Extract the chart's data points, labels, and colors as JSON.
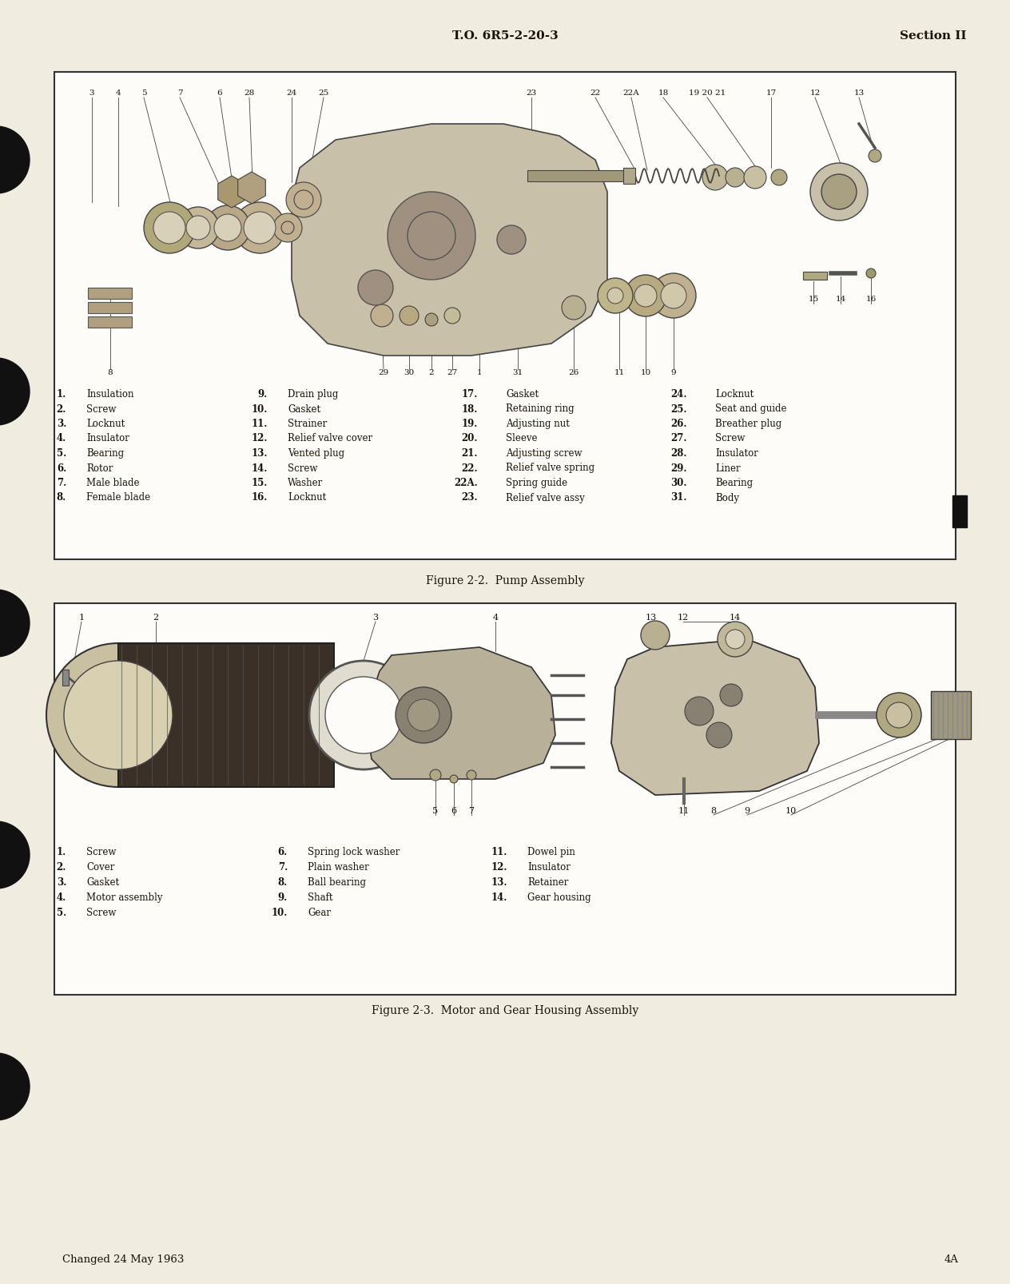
{
  "page_bg": "#f0ece0",
  "box_bg": "#fdfcf8",
  "text_color": "#1a1208",
  "header_center": "T.O. 6R5-2-20-3",
  "header_right": "Section II",
  "footer_left": "Changed 24 May 1963",
  "footer_right": "4A",
  "fig1_title": "Figure 2-2.  Pump Assembly",
  "fig1_legend": [
    [
      "1.",
      "Insulation",
      "9.",
      "Drain plug",
      "17.",
      "Gasket",
      "24.",
      "Locknut"
    ],
    [
      "2.",
      "Screw",
      "10.",
      "Gasket",
      "18.",
      "Retaining ring",
      "25.",
      "Seat and guide"
    ],
    [
      "3.",
      "Locknut",
      "11.",
      "Strainer",
      "19.",
      "Adjusting nut",
      "26.",
      "Breather plug"
    ],
    [
      "4.",
      "Insulator",
      "12.",
      "Relief valve cover",
      "20.",
      "Sleeve",
      "27.",
      "Screw"
    ],
    [
      "5.",
      "Bearing",
      "13.",
      "Vented plug",
      "21.",
      "Adjusting screw",
      "28.",
      "Insulator"
    ],
    [
      "6.",
      "Rotor",
      "14.",
      "Screw",
      "22.",
      "Relief valve spring",
      "29.",
      "Liner"
    ],
    [
      "7.",
      "Male blade",
      "15.",
      "Washer",
      "22A.",
      "Spring guide",
      "30.",
      "Bearing"
    ],
    [
      "8.",
      "Female blade",
      "16.",
      "Locknut",
      "23.",
      "Relief valve assy",
      "31.",
      "Body"
    ]
  ],
  "fig2_title": "Figure 2-3.  Motor and Gear Housing Assembly",
  "fig2_legend": [
    [
      "1.",
      "Screw",
      "6.",
      "Spring lock washer",
      "11.",
      "Dowel pin"
    ],
    [
      "2.",
      "Cover",
      "7.",
      "Plain washer",
      "12.",
      "Insulator"
    ],
    [
      "3.",
      "Gasket",
      "8.",
      "Ball bearing",
      "13.",
      "Retainer"
    ],
    [
      "4.",
      "Motor assembly",
      "9.",
      "Shaft",
      "14.",
      "Gear housing"
    ],
    [
      "5.",
      "Screw",
      "10.",
      "Gear",
      "",
      ""
    ]
  ]
}
